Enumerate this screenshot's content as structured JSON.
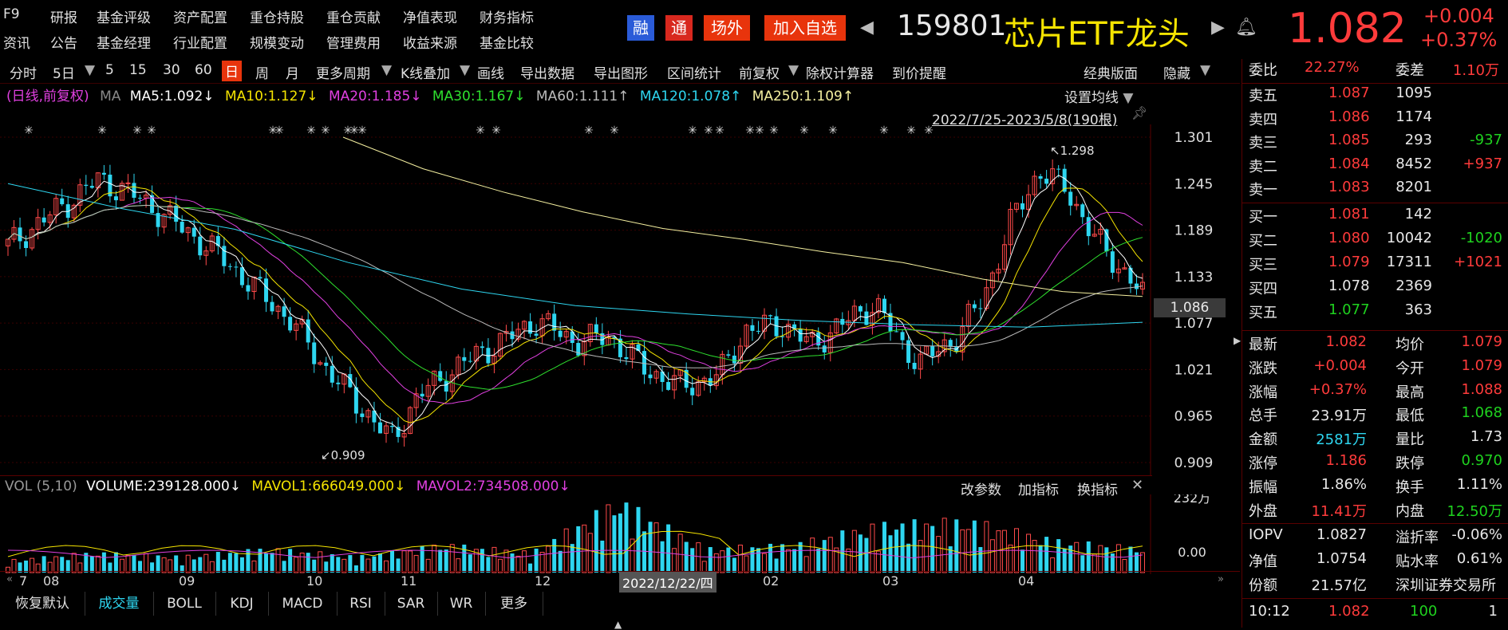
{
  "topnav": {
    "row1": [
      "F9",
      "研报",
      "基金评级",
      "资产配置",
      "重仓持股",
      "重仓贡献",
      "净值表现",
      "财务指标"
    ],
    "row2": [
      "资讯",
      "公告",
      "基金经理",
      "行业配置",
      "规模变动",
      "管理费用",
      "收益来源",
      "基金比较"
    ]
  },
  "badges": {
    "rong": "融",
    "tong": "通",
    "changwai": "场外",
    "add": "加入自选"
  },
  "stock": {
    "code": "159801",
    "name": "芯片ETF龙头",
    "price": "1.082",
    "change": "+0.004",
    "pct": "+0.37%"
  },
  "toolbar": {
    "items": [
      "分时",
      "5日",
      "5",
      "15",
      "30",
      "60",
      "日",
      "周",
      "月",
      "更多周期",
      "K线叠加",
      "画线",
      "导出数据",
      "导出图形",
      "区间统计",
      "前复权",
      "除权计算器",
      "到价提醒"
    ],
    "active": "日",
    "right": [
      "经典版面",
      "隐藏"
    ]
  },
  "ma_legend": {
    "prefix": "(日线,前复权)",
    "ma": "MA",
    "items": [
      {
        "text": "MA5:1.092↓",
        "color": "#ffffff"
      },
      {
        "text": "MA10:1.127↓",
        "color": "#f5e400"
      },
      {
        "text": "MA20:1.185↓",
        "color": "#e040e0"
      },
      {
        "text": "MA30:1.167↓",
        "color": "#2ee02e"
      },
      {
        "text": "MA60:1.111↑",
        "color": "#bbbbbb"
      },
      {
        "text": "MA120:1.078↑",
        "color": "#2ed6f0"
      },
      {
        "text": "MA250:1.109↑",
        "color": "#f5f0a0"
      }
    ]
  },
  "chart_labels": {
    "set_ma": "设置均线",
    "range": "2022/7/25-2023/5/8(190根)",
    "high": "1.298",
    "low": "0.909",
    "current": "1.086"
  },
  "chart_data": [
    {
      "type": "line",
      "title": "",
      "y_ticks": [
        "1.301",
        "1.245",
        "1.189",
        "1.133",
        "1.077",
        "1.021",
        "0.965",
        "0.909"
      ],
      "x_ticks": [
        "7",
        "08",
        "09",
        "10",
        "11",
        "12",
        "2022/12/22/四",
        "02",
        "03",
        "04"
      ],
      "ylim": [
        0.909,
        1.301
      ],
      "series": [
        {
          "name": "MA250",
          "values": [
            1.301,
            1.263,
            1.235,
            1.211,
            1.191,
            1.178,
            1.163,
            1.15,
            1.13,
            1.115,
            1.109
          ]
        },
        {
          "name": "MA120",
          "values": [
            1.245,
            1.215,
            1.19,
            1.15,
            1.118,
            1.098,
            1.088,
            1.08,
            1.075,
            1.072,
            1.078
          ]
        },
        {
          "name": "MA5",
          "values": [
            1.19,
            1.23,
            1.14,
            1.0,
            1.07,
            1.08,
            1.0,
            1.06,
            1.04,
            1.24,
            1.092
          ]
        }
      ]
    },
    {
      "type": "bar",
      "title": "VOL (5,10)",
      "y_ticks": [
        "232万",
        "0.00"
      ],
      "values": [
        0.15,
        0.25,
        0.2,
        0.3,
        0.2,
        0.35,
        0.25,
        0.9,
        0.3,
        0.35,
        0.6,
        0.65,
        0.4,
        0.3
      ]
    }
  ],
  "vol_legend": {
    "prefix": "VOL (5,10)",
    "items": [
      {
        "text": "VOLUME:239128.000↓",
        "color": "#ffffff"
      },
      {
        "text": "MAVOL1:666049.000↓",
        "color": "#f5e400"
      },
      {
        "text": "MAVOL2:734508.000↓",
        "color": "#e040e0"
      }
    ],
    "buttons": [
      "改参数",
      "加指标",
      "换指标"
    ]
  },
  "rpanel": {
    "weibi": {
      "label1": "委比",
      "val1": "22.27%",
      "label2": "委差",
      "val2": "1.10万"
    },
    "sell": [
      {
        "label": "卖五",
        "price": "1.087",
        "vol": "1095",
        "chg": ""
      },
      {
        "label": "卖四",
        "price": "1.086",
        "vol": "1174",
        "chg": ""
      },
      {
        "label": "卖三",
        "price": "1.085",
        "vol": "293",
        "chg": "-937"
      },
      {
        "label": "卖二",
        "price": "1.084",
        "vol": "8452",
        "chg": "+937"
      },
      {
        "label": "卖一",
        "price": "1.083",
        "vol": "8201",
        "chg": ""
      }
    ],
    "buy": [
      {
        "label": "买一",
        "price": "1.081",
        "vol": "142",
        "chg": ""
      },
      {
        "label": "买二",
        "price": "1.080",
        "vol": "10042",
        "chg": "-1020"
      },
      {
        "label": "买三",
        "price": "1.079",
        "vol": "17311",
        "chg": "+1021"
      },
      {
        "label": "买四",
        "price": "1.078",
        "vol": "2369",
        "chg": ""
      },
      {
        "label": "买五",
        "price": "1.077",
        "vol": "363",
        "chg": ""
      }
    ],
    "stats": [
      {
        "l1": "最新",
        "v1": "1.082",
        "c1": "red",
        "l2": "均价",
        "v2": "1.079",
        "c2": "red"
      },
      {
        "l1": "涨跌",
        "v1": "+0.004",
        "c1": "red",
        "l2": "今开",
        "v2": "1.079",
        "c2": "red"
      },
      {
        "l1": "涨幅",
        "v1": "+0.37%",
        "c1": "red",
        "l2": "最高",
        "v2": "1.088",
        "c2": "red"
      },
      {
        "l1": "总手",
        "v1": "23.91万",
        "c1": "white",
        "l2": "最低",
        "v2": "1.068",
        "c2": "green"
      },
      {
        "l1": "金额",
        "v1": "2581万",
        "c1": "cyan",
        "l2": "量比",
        "v2": "1.73",
        "c2": "white"
      },
      {
        "l1": "涨停",
        "v1": "1.186",
        "c1": "red",
        "l2": "跌停",
        "v2": "0.970",
        "c2": "green"
      },
      {
        "l1": "振幅",
        "v1": "1.86%",
        "c1": "white",
        "l2": "换手",
        "v2": "1.11%",
        "c2": "white"
      },
      {
        "l1": "外盘",
        "v1": "11.41万",
        "c1": "red",
        "l2": "内盘",
        "v2": "12.50万",
        "c2": "green"
      }
    ],
    "fund": [
      {
        "l1": "IOPV",
        "v1": "1.0827",
        "l2": "溢折率",
        "v2": "-0.06%"
      },
      {
        "l1": "净值",
        "v1": "1.0754",
        "l2": "贴水率",
        "v2": "0.61%"
      },
      {
        "l1": "份额",
        "v1": "21.57亿",
        "l2": "深圳证券交易所",
        "v2": ""
      }
    ],
    "tick": {
      "time": "10:12",
      "price": "1.082",
      "vol": "100",
      "n": "1"
    }
  },
  "bottomtabs": [
    "恢复默认",
    "成交量",
    "BOLL",
    "KDJ",
    "MACD",
    "RSI",
    "SAR",
    "WR",
    "更多"
  ],
  "bottom_active": "成交量"
}
